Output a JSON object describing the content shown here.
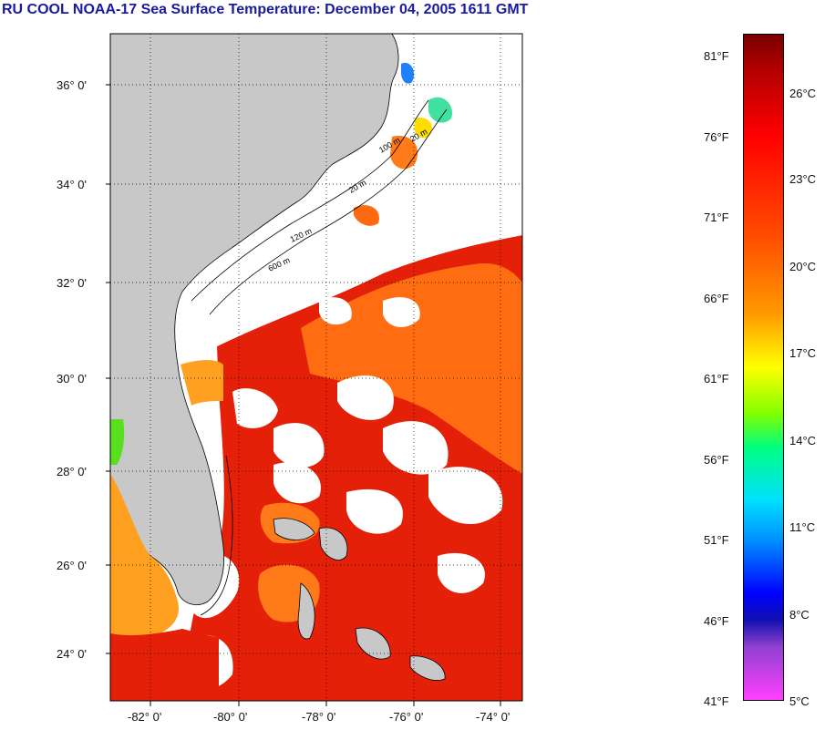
{
  "header": {
    "title": "RU COOL  NOAA-17  Sea Surface Temperature:  December 04, 2005 1611 GMT"
  },
  "map": {
    "lat_labels": [
      "36° 0'",
      "34° 0'",
      "32° 0'",
      "30° 0'",
      "28° 0'",
      "26° 0'",
      "24° 0'"
    ],
    "lon_labels": [
      "-82° 0'",
      "-80° 0'",
      "-78° 0'",
      "-76° 0'",
      "-74° 0'"
    ],
    "isobath_labels": [
      "20 m",
      "100 m",
      "20 m",
      "120 m",
      "600 m"
    ],
    "colors": {
      "land": "#c8c8c8",
      "cloud": "#ffffff",
      "warm_water": "#e02000",
      "mid_water": "#ff6a10",
      "coastal_water": "#ffa000"
    }
  },
  "colorbar": {
    "fahrenheit": [
      "81°F",
      "76°F",
      "71°F",
      "66°F",
      "61°F",
      "56°F",
      "51°F",
      "46°F",
      "41°F"
    ],
    "celsius": [
      "26°C",
      "23°C",
      "20°C",
      "17°C",
      "14°C",
      "11°C",
      "8°C",
      "5°C"
    ]
  }
}
